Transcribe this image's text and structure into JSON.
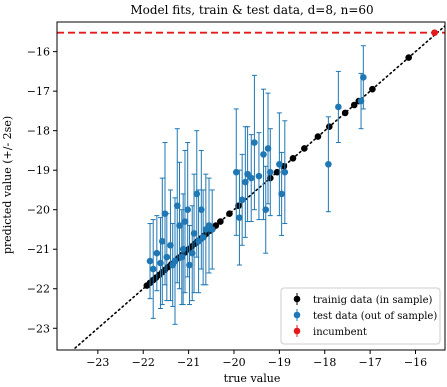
{
  "chart_data": {
    "type": "scatter",
    "title": "Model fits, train & test data, d=8, n=60",
    "xlabel": "true value",
    "ylabel": "predicted value (+/- 2se)",
    "xlim": [
      -23.9,
      -15.35
    ],
    "ylim": [
      -23.55,
      -15.25
    ],
    "xticks": [
      -23,
      -22,
      -21,
      -20,
      -19,
      -18,
      -17,
      -16
    ],
    "yticks": [
      -23,
      -22,
      -21,
      -20,
      -19,
      -18,
      -17,
      -16
    ],
    "xtick_labels": [
      "−23",
      "−22",
      "−21",
      "−20",
      "−19",
      "−18",
      "−17",
      "−16"
    ],
    "ytick_labels": [
      "−23",
      "−22",
      "−21",
      "−20",
      "−19",
      "−18",
      "−17",
      "−16"
    ],
    "grid": false,
    "legend_position": "lower right",
    "reference_line": {
      "style": "dotted",
      "color": "#000000",
      "from": [
        -23.9,
        -23.9
      ],
      "to": [
        -15.35,
        -15.35
      ]
    },
    "incumbent_hline": {
      "y": -15.52,
      "style": "dashed",
      "color": "#e41a1c"
    },
    "series": [
      {
        "name": "trainig data (in sample)",
        "color": "#000000",
        "x": [
          -21.92,
          -21.85,
          -21.78,
          -21.72,
          -21.65,
          -21.58,
          -21.52,
          -21.45,
          -21.38,
          -21.3,
          -21.22,
          -21.15,
          -21.08,
          -21.0,
          -20.93,
          -20.86,
          -20.8,
          -20.73,
          -20.66,
          -20.6,
          -20.53,
          -20.47,
          -20.4,
          -20.3,
          -20.1,
          -19.9,
          -19.2,
          -19.05,
          -18.9,
          -18.7,
          -18.45,
          -18.15,
          -17.9,
          -17.55,
          -17.35,
          -17.25,
          -16.95,
          -16.15
        ],
        "y": [
          -21.92,
          -21.85,
          -21.78,
          -21.72,
          -21.65,
          -21.58,
          -21.52,
          -21.45,
          -21.38,
          -21.3,
          -21.22,
          -21.15,
          -21.08,
          -21.0,
          -20.93,
          -20.86,
          -20.8,
          -20.73,
          -20.66,
          -20.6,
          -20.53,
          -20.47,
          -20.4,
          -20.3,
          -20.1,
          -19.9,
          -19.2,
          -19.05,
          -18.9,
          -18.7,
          -18.45,
          -18.15,
          -17.9,
          -17.55,
          -17.35,
          -17.25,
          -16.95,
          -16.15
        ]
      },
      {
        "name": "test data (out of sample)",
        "color": "#1f77b4",
        "x": [
          -21.85,
          -21.78,
          -21.7,
          -21.62,
          -21.58,
          -21.52,
          -21.48,
          -21.4,
          -21.35,
          -21.3,
          -21.25,
          -21.2,
          -21.15,
          -21.12,
          -21.08,
          -21.02,
          -20.98,
          -20.92,
          -20.88,
          -20.82,
          -20.78,
          -20.72,
          -20.68,
          -20.62,
          -20.55,
          -20.48,
          -19.95,
          -19.88,
          -19.82,
          -19.75,
          -19.7,
          -19.62,
          -19.55,
          -19.45,
          -19.35,
          -19.3,
          -19.25,
          -19.2,
          -19.0,
          -18.95,
          -18.88,
          -17.92,
          -17.7,
          -17.2,
          -17.15
        ],
        "y": [
          -21.3,
          -21.5,
          -21.1,
          -21.35,
          -20.8,
          -20.1,
          -21.2,
          -20.9,
          -21.4,
          -21.3,
          -19.9,
          -20.4,
          -21.2,
          -21.0,
          -20.3,
          -20.0,
          -21.4,
          -21.1,
          -20.6,
          -19.6,
          -20.8,
          -20.0,
          -20.7,
          -20.5,
          -20.4,
          -20.5,
          -19.05,
          -20.2,
          -19.75,
          -19.3,
          -19.1,
          -19.2,
          -18.3,
          -19.15,
          -18.6,
          -20.0,
          -18.45,
          -19.05,
          -18.85,
          -19.6,
          -19.05,
          -18.85,
          -17.4,
          -17.25,
          -16.65
        ],
        "err": [
          0.95,
          1.25,
          0.95,
          1.15,
          1.6,
          1.8,
          1.1,
          1.4,
          1.05,
          1.6,
          1.95,
          1.6,
          1.2,
          1.4,
          1.8,
          1.7,
          1.0,
          1.2,
          1.5,
          1.6,
          1.3,
          1.5,
          1.2,
          1.4,
          1.2,
          1.0,
          1.6,
          1.2,
          1.15,
          1.4,
          1.2,
          1.1,
          1.7,
          1.1,
          1.65,
          1.1,
          1.4,
          1.1,
          1.3,
          1.05,
          1.3,
          1.2,
          0.9,
          0.7,
          0.8
        ]
      },
      {
        "name": "incumbent",
        "color": "#e41a1c",
        "x": [
          -15.58
        ],
        "y": [
          -15.52
        ],
        "err": [
          0.05
        ]
      }
    ]
  }
}
